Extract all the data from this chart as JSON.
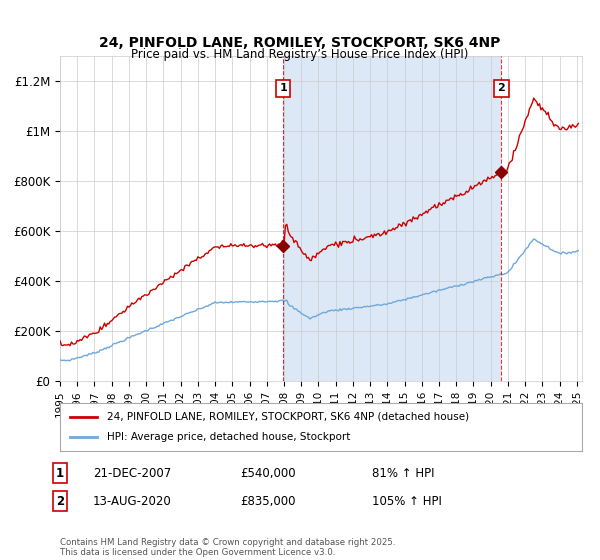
{
  "title": "24, PINFOLD LANE, ROMILEY, STOCKPORT, SK6 4NP",
  "subtitle": "Price paid vs. HM Land Registry’s House Price Index (HPI)",
  "ylim": [
    0,
    1300000
  ],
  "yticks": [
    0,
    200000,
    400000,
    600000,
    800000,
    1000000,
    1200000
  ],
  "ytick_labels": [
    "£0",
    "£200K",
    "£400K",
    "£600K",
    "£800K",
    "£1M",
    "£1.2M"
  ],
  "xticks": [
    1995,
    1996,
    1997,
    1998,
    1999,
    2000,
    2001,
    2002,
    2003,
    2004,
    2005,
    2006,
    2007,
    2008,
    2009,
    2010,
    2011,
    2012,
    2013,
    2014,
    2015,
    2016,
    2017,
    2018,
    2019,
    2020,
    2021,
    2022,
    2023,
    2024,
    2025
  ],
  "hpi_color": "#6fa8dc",
  "price_color": "#cc0000",
  "marker_color": "#8B0000",
  "vline_color": "#dd0000",
  "background_color": "#ffffff",
  "plot_bg_color": "#ffffff",
  "grid_color": "#cccccc",
  "shade_color": "#dce8f5",
  "legend_label_price": "24, PINFOLD LANE, ROMILEY, STOCKPORT, SK6 4NP (detached house)",
  "legend_label_hpi": "HPI: Average price, detached house, Stockport",
  "annotation1_num": "1",
  "annotation1_date": "21-DEC-2007",
  "annotation1_price": "£540,000",
  "annotation1_hpi": "81% ↑ HPI",
  "annotation1_year": 2007.96,
  "annotation1_price_val": 540000,
  "annotation2_num": "2",
  "annotation2_date": "13-AUG-2020",
  "annotation2_price": "£835,000",
  "annotation2_hpi": "105% ↑ HPI",
  "annotation2_year": 2020.62,
  "annotation2_price_val": 835000,
  "footer": "Contains HM Land Registry data © Crown copyright and database right 2025.\nThis data is licensed under the Open Government Licence v3.0."
}
